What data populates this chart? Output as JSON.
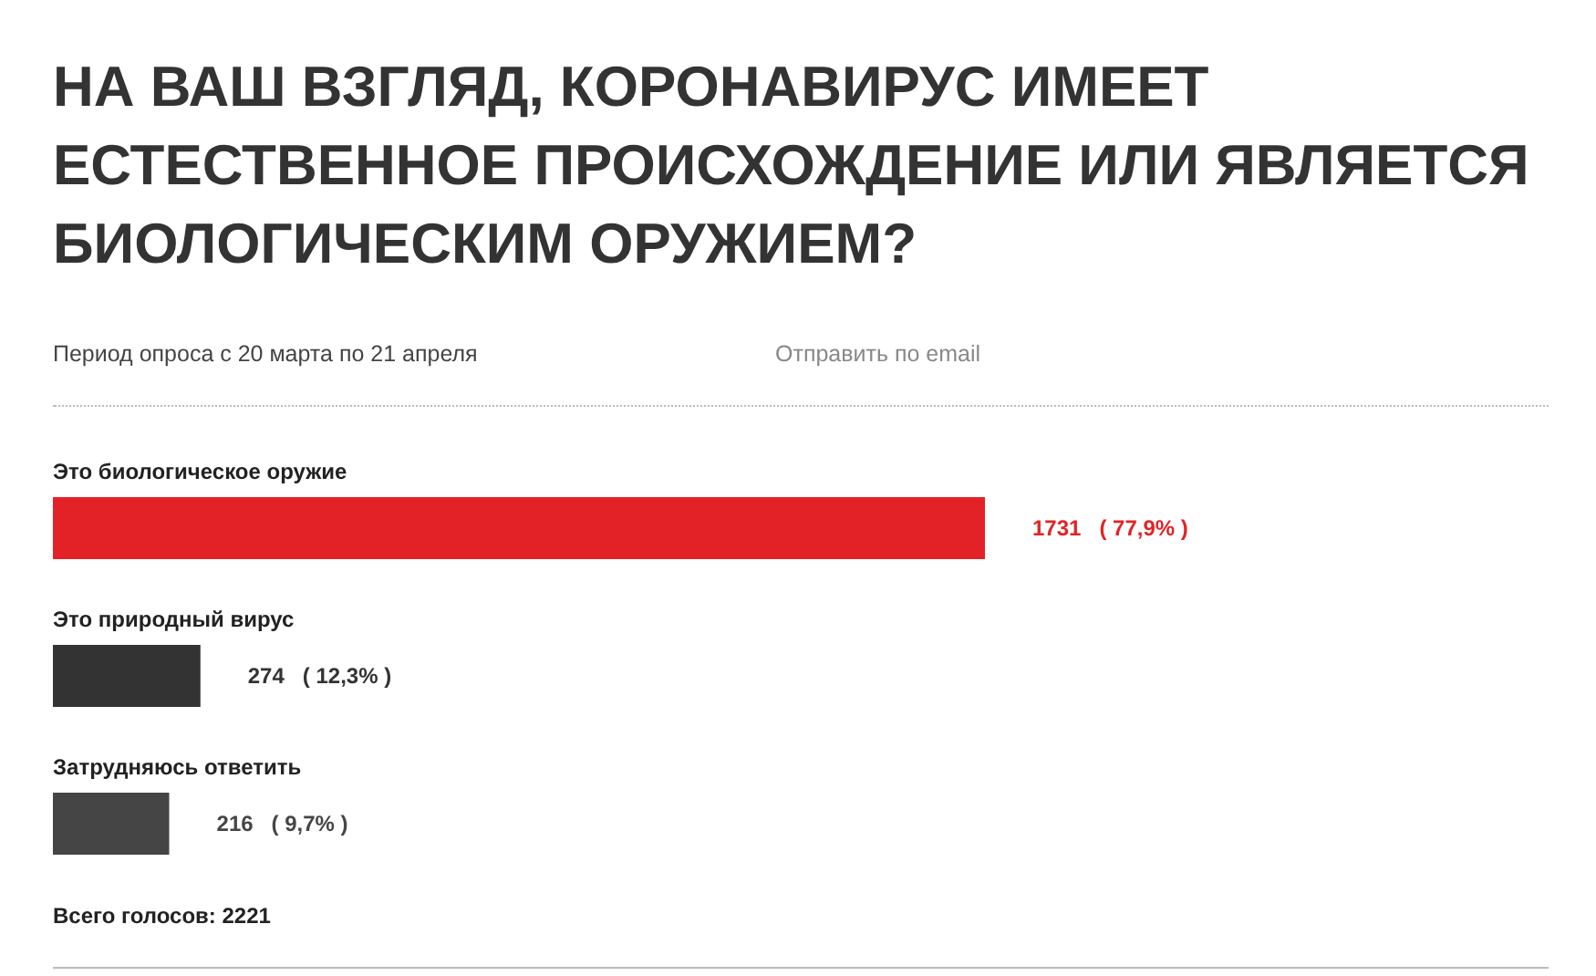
{
  "chart_data": {
    "type": "bar",
    "orientation": "horizontal",
    "title": "НА ВАШ ВЗГЛЯД, КОРОНАВИРУС ИМЕЕТ ЕСТЕСТВЕННОЕ ПРОИСХОЖДЕНИЕ ИЛИ ЯВЛЯЕТСЯ БИОЛОГИЧЕСКИМ ОРУЖИЕМ?",
    "subtitle": "Период опроса с 20 марта по 21 апреля",
    "annotations": [
      "Отправить по email",
      "Всего голосов: 2221"
    ],
    "categories": [
      "Это биологическое оружие",
      "Это природный вирус",
      "Затрудняюсь ответить"
    ],
    "values": [
      1731,
      274,
      216
    ],
    "colors": [
      "#e32227",
      "#333333",
      "#454545"
    ],
    "value_labels": [
      "1731   ( 77,9% )",
      "274   ( 12,3% )",
      "216   ( 9,7% )"
    ]
  }
}
